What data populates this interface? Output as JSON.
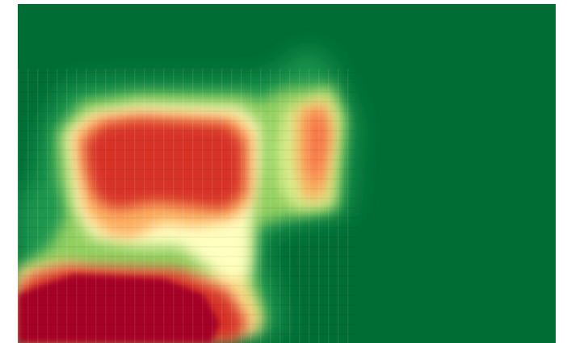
{
  "view": {
    "type": "heatmap-image",
    "colormap": "RdYlGn",
    "colors": {
      "background_green": "#006d35",
      "mid_green": "#1a9850",
      "light_green": "#91cf60",
      "yellow": "#ffffbf",
      "orange": "#fdae61",
      "light_red": "#f46d43",
      "red": "#d73027",
      "dark_red": "#a50026"
    }
  }
}
